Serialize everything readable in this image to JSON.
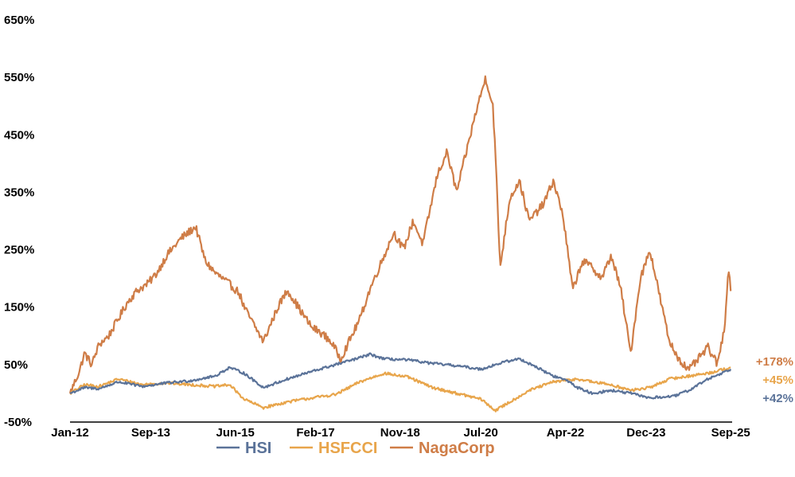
{
  "chart_data": {
    "type": "line",
    "title": "",
    "xlabel": "",
    "ylabel": "",
    "ylim": [
      -50,
      650
    ],
    "yticks": [
      "650%",
      "550%",
      "450%",
      "350%",
      "250%",
      "150%",
      "50%",
      "-50%"
    ],
    "ytick_values": [
      650,
      550,
      450,
      350,
      250,
      150,
      50,
      -50
    ],
    "xlim": [
      0,
      13.7
    ],
    "xticks": [
      "Jan-12",
      "Sep-13",
      "Jun-15",
      "Feb-17",
      "Nov-18",
      "Jul-20",
      "Apr-22",
      "Dec-23",
      "Sep-25"
    ],
    "xtick_values": [
      0,
      1.67,
      3.42,
      5.08,
      6.83,
      8.5,
      10.25,
      11.92,
      13.67
    ],
    "grid": false,
    "legend_position": "bottom-center",
    "series": [
      {
        "name": "HSI",
        "color": "#5b7399",
        "end_label": "+42%",
        "points": [
          [
            0,
            0
          ],
          [
            0.3,
            10
          ],
          [
            0.6,
            8
          ],
          [
            1.0,
            20
          ],
          [
            1.5,
            12
          ],
          [
            2.0,
            18
          ],
          [
            2.5,
            22
          ],
          [
            3.0,
            30
          ],
          [
            3.3,
            45
          ],
          [
            3.6,
            35
          ],
          [
            4.0,
            10
          ],
          [
            4.5,
            25
          ],
          [
            5.0,
            38
          ],
          [
            5.5,
            50
          ],
          [
            6.0,
            62
          ],
          [
            6.2,
            68
          ],
          [
            6.5,
            60
          ],
          [
            7.0,
            58
          ],
          [
            7.5,
            52
          ],
          [
            8.0,
            48
          ],
          [
            8.5,
            42
          ],
          [
            9.0,
            55
          ],
          [
            9.3,
            60
          ],
          [
            9.6,
            48
          ],
          [
            10.0,
            30
          ],
          [
            10.3,
            22
          ],
          [
            10.5,
            10
          ],
          [
            10.8,
            0
          ],
          [
            11.2,
            5
          ],
          [
            11.6,
            0
          ],
          [
            12.0,
            -8
          ],
          [
            12.5,
            -5
          ],
          [
            12.8,
            5
          ],
          [
            13.2,
            25
          ],
          [
            13.67,
            42
          ]
        ]
      },
      {
        "name": "HSFCCI",
        "color": "#e8a54b",
        "end_label": "+45%",
        "points": [
          [
            0,
            0
          ],
          [
            0.3,
            15
          ],
          [
            0.6,
            12
          ],
          [
            1.0,
            25
          ],
          [
            1.5,
            15
          ],
          [
            2.0,
            18
          ],
          [
            2.5,
            15
          ],
          [
            3.0,
            12
          ],
          [
            3.3,
            15
          ],
          [
            3.6,
            -10
          ],
          [
            4.0,
            -25
          ],
          [
            4.5,
            -15
          ],
          [
            5.0,
            -8
          ],
          [
            5.5,
            -2
          ],
          [
            6.0,
            20
          ],
          [
            6.5,
            35
          ],
          [
            7.0,
            28
          ],
          [
            7.5,
            10
          ],
          [
            8.0,
            0
          ],
          [
            8.5,
            -10
          ],
          [
            8.8,
            -30
          ],
          [
            9.0,
            -20
          ],
          [
            9.5,
            5
          ],
          [
            10.0,
            20
          ],
          [
            10.5,
            25
          ],
          [
            10.8,
            20
          ],
          [
            11.2,
            15
          ],
          [
            11.6,
            5
          ],
          [
            12.0,
            10
          ],
          [
            12.4,
            25
          ],
          [
            12.8,
            30
          ],
          [
            13.2,
            35
          ],
          [
            13.67,
            45
          ]
        ]
      },
      {
        "name": "NagaCorp",
        "color": "#cf7d47",
        "end_label": "+178%",
        "points": [
          [
            0,
            0
          ],
          [
            0.2,
            40
          ],
          [
            0.3,
            70
          ],
          [
            0.45,
            50
          ],
          [
            0.6,
            85
          ],
          [
            0.8,
            100
          ],
          [
            1.0,
            130
          ],
          [
            1.2,
            160
          ],
          [
            1.4,
            180
          ],
          [
            1.6,
            190
          ],
          [
            1.8,
            210
          ],
          [
            2.0,
            240
          ],
          [
            2.3,
            270
          ],
          [
            2.6,
            290
          ],
          [
            2.8,
            230
          ],
          [
            3.0,
            210
          ],
          [
            3.3,
            190
          ],
          [
            3.5,
            175
          ],
          [
            3.6,
            150
          ],
          [
            3.8,
            120
          ],
          [
            4.0,
            90
          ],
          [
            4.3,
            150
          ],
          [
            4.5,
            180
          ],
          [
            4.8,
            140
          ],
          [
            5.0,
            115
          ],
          [
            5.2,
            105
          ],
          [
            5.4,
            90
          ],
          [
            5.6,
            60
          ],
          [
            5.8,
            95
          ],
          [
            6.0,
            130
          ],
          [
            6.2,
            180
          ],
          [
            6.5,
            240
          ],
          [
            6.7,
            280
          ],
          [
            6.9,
            250
          ],
          [
            7.1,
            300
          ],
          [
            7.3,
            260
          ],
          [
            7.6,
            380
          ],
          [
            7.8,
            420
          ],
          [
            8.0,
            350
          ],
          [
            8.2,
            420
          ],
          [
            8.4,
            490
          ],
          [
            8.6,
            550
          ],
          [
            8.75,
            500
          ],
          [
            8.8,
            420
          ],
          [
            8.9,
            220
          ],
          [
            9.1,
            340
          ],
          [
            9.3,
            370
          ],
          [
            9.5,
            300
          ],
          [
            9.8,
            330
          ],
          [
            10.0,
            370
          ],
          [
            10.2,
            310
          ],
          [
            10.4,
            180
          ],
          [
            10.6,
            230
          ],
          [
            10.8,
            220
          ],
          [
            11.0,
            200
          ],
          [
            11.2,
            240
          ],
          [
            11.4,
            180
          ],
          [
            11.6,
            70
          ],
          [
            11.8,
            200
          ],
          [
            12.0,
            250
          ],
          [
            12.2,
            170
          ],
          [
            12.4,
            90
          ],
          [
            12.6,
            60
          ],
          [
            12.8,
            40
          ],
          [
            13.0,
            60
          ],
          [
            13.2,
            80
          ],
          [
            13.4,
            50
          ],
          [
            13.55,
            120
          ],
          [
            13.62,
            220
          ],
          [
            13.67,
            178
          ]
        ]
      }
    ]
  }
}
